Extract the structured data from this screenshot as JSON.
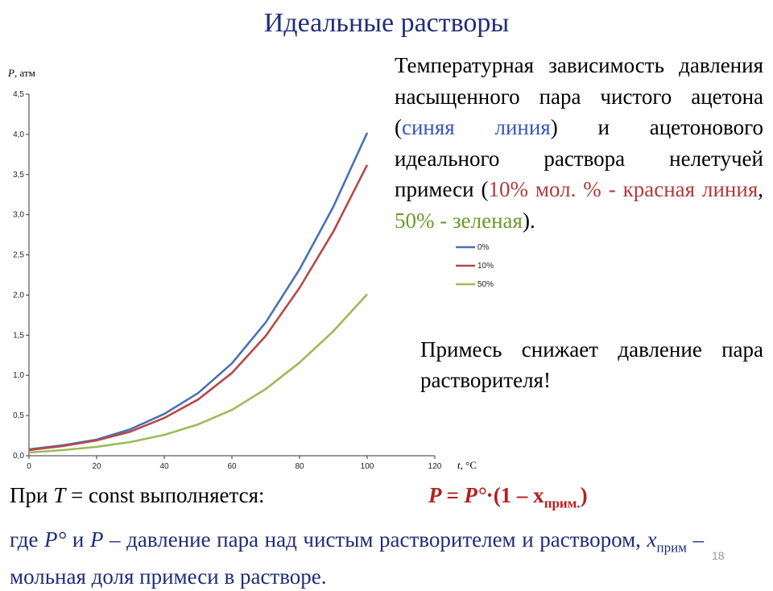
{
  "title": "Идеальные растворы",
  "description": {
    "part1": "Температурная зависимость давления насыщенного пара чистого ацетона (",
    "blue_text": "синяя линия",
    "part2": ") и ацетонового идеального раствора нелетучей примеси (",
    "red_text": "10% мол. % - красная линия",
    "comma": ", ",
    "green_text": "50% - зеленая",
    "part3": ")."
  },
  "note": "Примесь снижает давление пара растворителя!",
  "condition": {
    "prefix": "При ",
    "var": "T",
    "suffix": " = const выполняется:"
  },
  "formula": {
    "lhs": "P = P°",
    "dot": "·",
    "rhs": "(1 – x",
    "sub": "прим.",
    "close": ")"
  },
  "explanation": {
    "part1": "где ",
    "p0": "P°",
    "mid1": " и ",
    "p": "P",
    "mid2": " – давление пара над чистым растворителем и раствором, ",
    "x": "x",
    "sub": "прим",
    "part2": " – мольная доля примеси в растворе."
  },
  "page_number": "18",
  "colors": {
    "title": "#1f2d7a",
    "blue": "#4a72b0",
    "red": "#b84848",
    "green": "#9bbb59",
    "formula": "#b52020"
  },
  "chart_data": {
    "type": "line",
    "ylabel_italic": "P",
    "ylabel_unit": ", атм",
    "xlabel_italic": "t",
    "xlabel_unit": ", °C",
    "xlim": [
      0,
      120
    ],
    "ylim": [
      0,
      4.5
    ],
    "x_ticks": [
      "0",
      "20",
      "40",
      "60",
      "80",
      "100",
      "120"
    ],
    "y_ticks": [
      "0,0",
      "0,5",
      "1,0",
      "1,5",
      "2,0",
      "2,5",
      "3,0",
      "3,5",
      "4,0",
      "4,5"
    ],
    "x": [
      0,
      10,
      20,
      30,
      40,
      50,
      60,
      70,
      80,
      90,
      100
    ],
    "series": [
      {
        "name": "0%",
        "color": "#4a72b0",
        "values": [
          0.08,
          0.13,
          0.2,
          0.33,
          0.52,
          0.78,
          1.15,
          1.66,
          2.32,
          3.1,
          4.02
        ]
      },
      {
        "name": "10%",
        "color": "#b84848",
        "values": [
          0.07,
          0.12,
          0.19,
          0.3,
          0.47,
          0.7,
          1.03,
          1.49,
          2.09,
          2.79,
          3.62
        ]
      },
      {
        "name": "50%",
        "color": "#9bbb59",
        "values": [
          0.04,
          0.07,
          0.11,
          0.17,
          0.26,
          0.39,
          0.57,
          0.83,
          1.16,
          1.55,
          2.01
        ]
      }
    ],
    "legend_position": "right"
  }
}
